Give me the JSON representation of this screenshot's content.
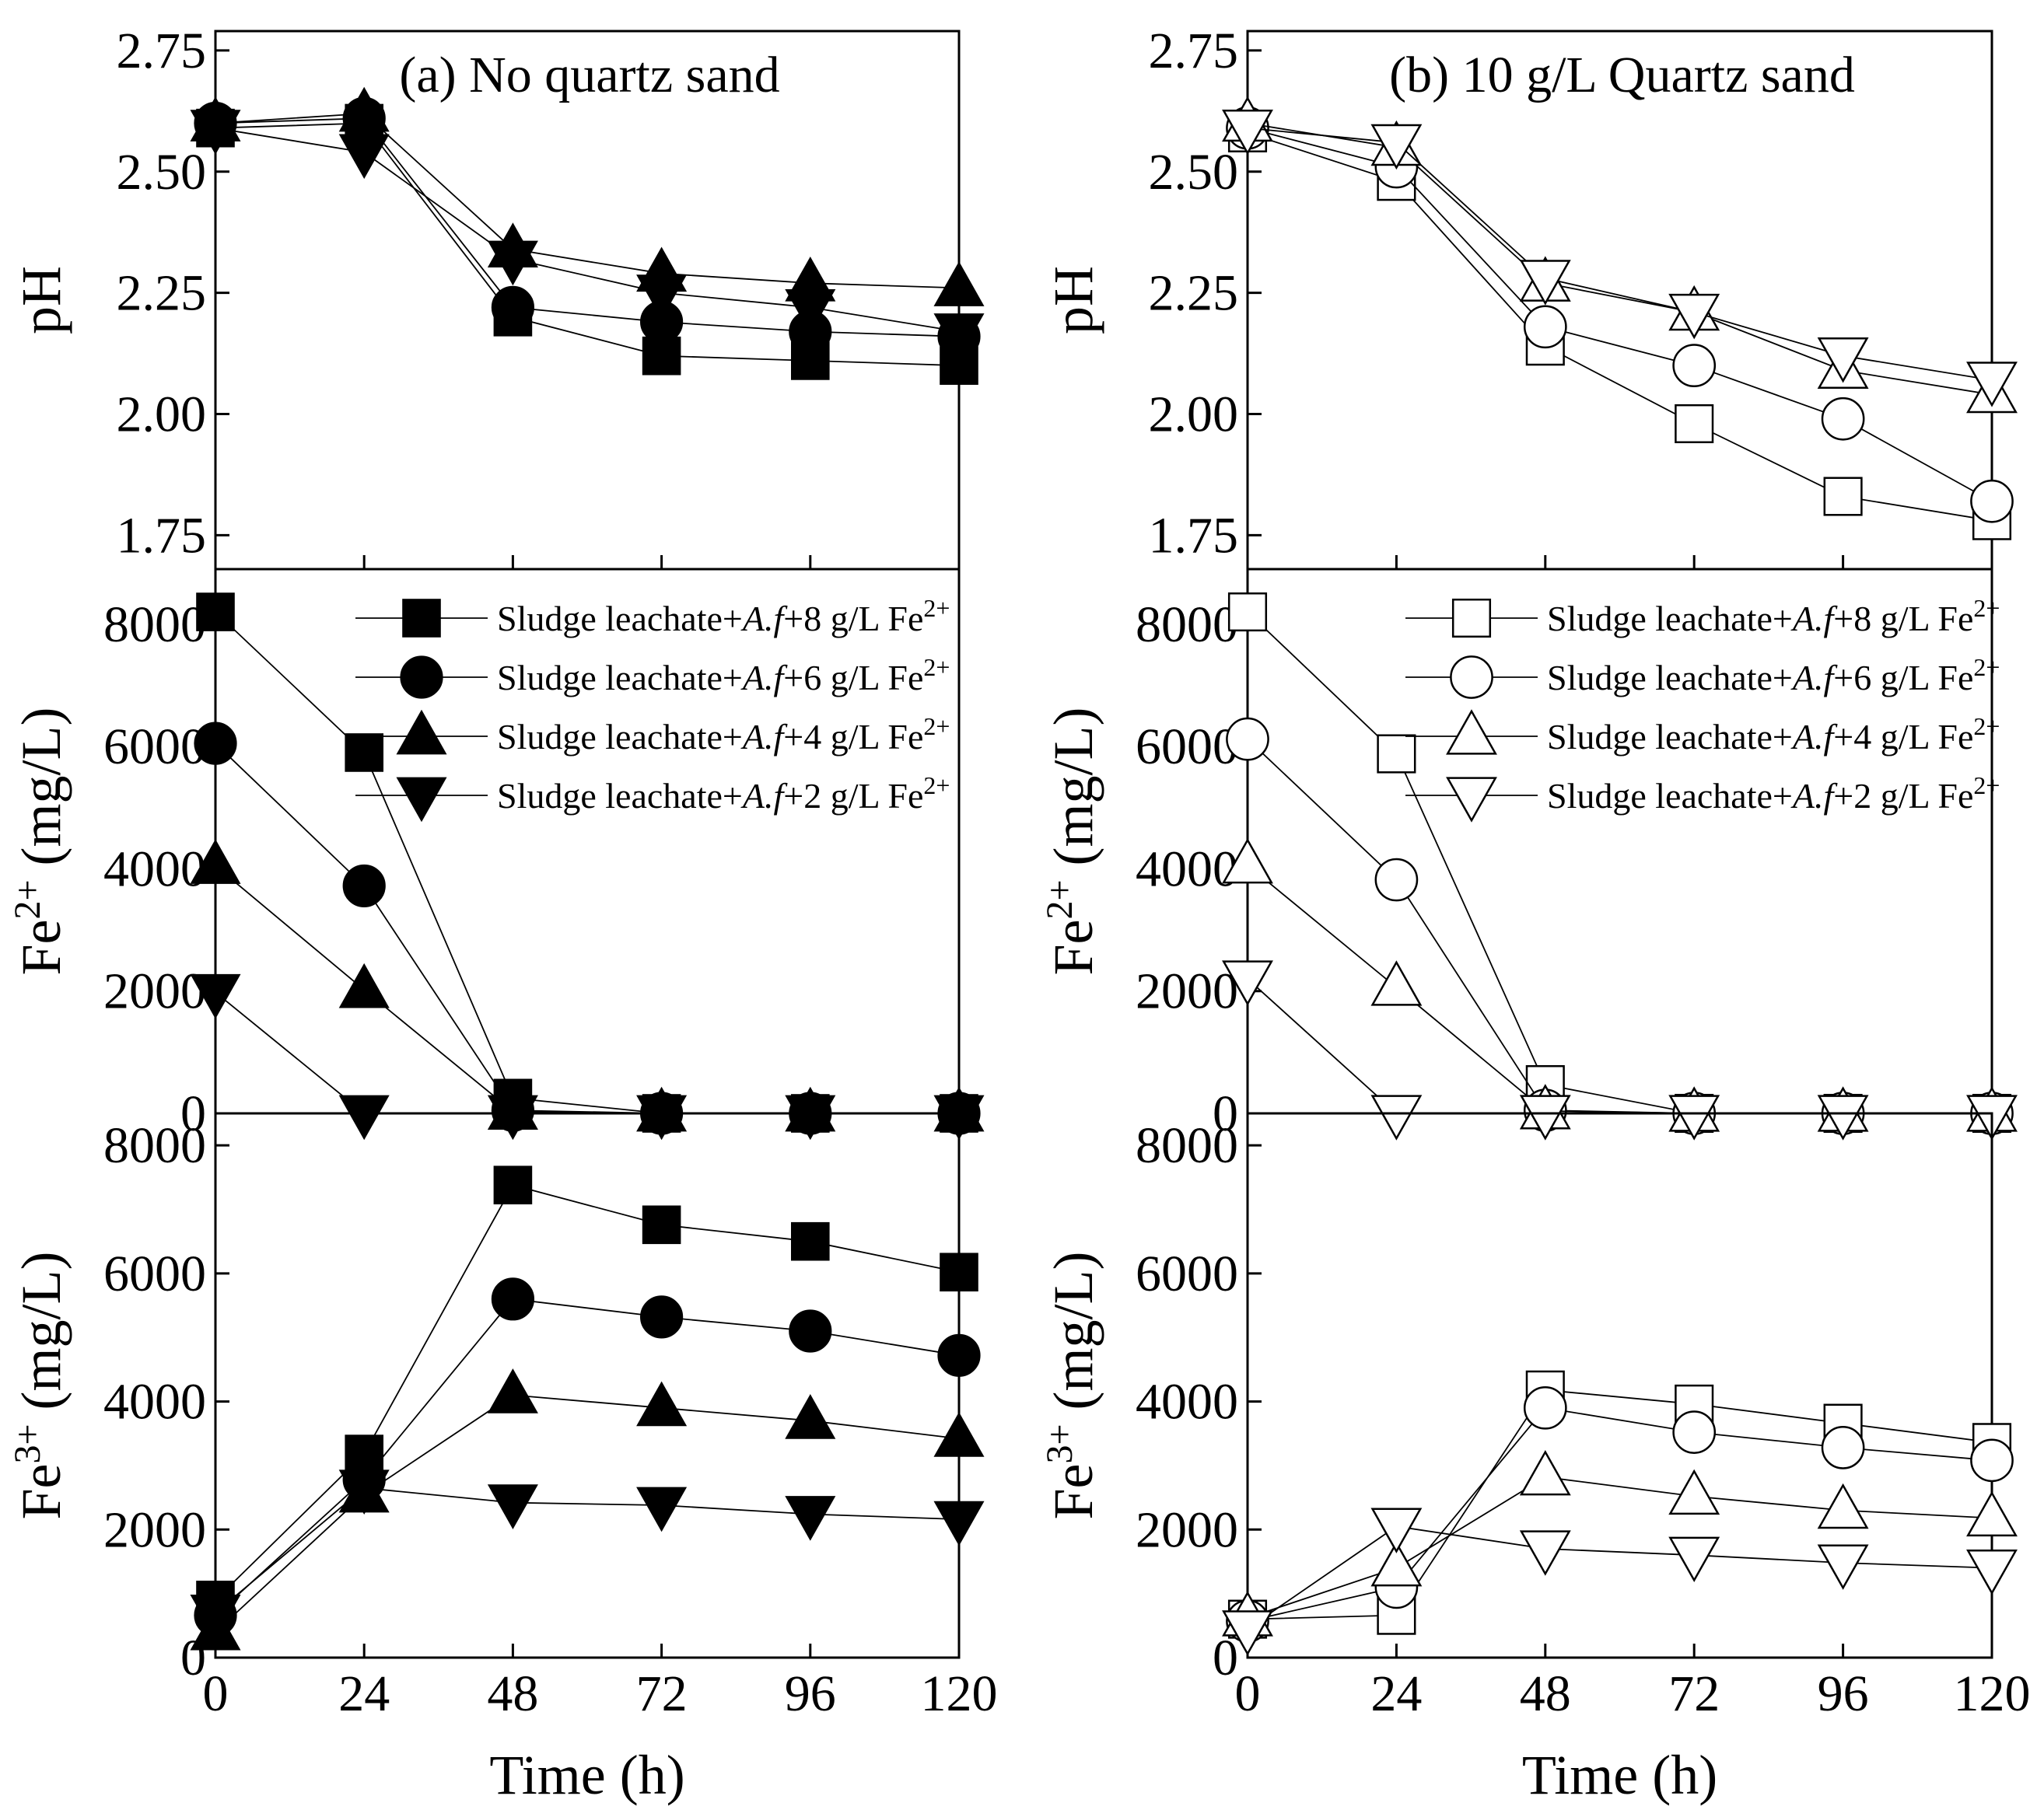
{
  "figure": {
    "xlabel": "Time (h)",
    "xticks": [
      "0",
      "24",
      "48",
      "72",
      "96",
      "120"
    ],
    "legend": {
      "prefix": "Sludge leachate+",
      "italic": "A.f",
      "entries": [
        {
          "conc": "+8 g/L Fe",
          "sup": "2+"
        },
        {
          "conc": "+6 g/L Fe",
          "sup": "2+"
        },
        {
          "conc": "+4 g/L Fe",
          "sup": "2+"
        },
        {
          "conc": "+2 g/L Fe",
          "sup": "2+"
        }
      ]
    },
    "rows": [
      {
        "key": "ph",
        "ylabel": "pH",
        "ylabel_sup": "",
        "ylabel_suffix": "",
        "yticks": [
          "1.75",
          "2.00",
          "2.25",
          "2.50",
          "2.75"
        ]
      },
      {
        "key": "fe2",
        "ylabel": "Fe",
        "ylabel_sup": "2+",
        "ylabel_suffix": " (mg/L)",
        "yticks": [
          "0",
          "2000",
          "4000",
          "6000",
          "8000"
        ]
      },
      {
        "key": "fe3",
        "ylabel": "Fe",
        "ylabel_sup": "3+",
        "ylabel_suffix": " (mg/L)",
        "yticks": [
          "0",
          "2000",
          "4000",
          "6000",
          "8000"
        ]
      }
    ]
  },
  "chart_data": [
    {
      "type": "line",
      "panel": "a",
      "title": "(a) No quartz sand",
      "marker_fill": "filled",
      "x": [
        0,
        24,
        48,
        72,
        96,
        120
      ],
      "xlim": [
        0,
        120
      ],
      "ph": {
        "ylim": [
          1.68,
          2.79
        ],
        "series": [
          {
            "name": "Sludge leachate+A.f+8 g/L Fe2+",
            "marker": "square",
            "values": [
              2.59,
              2.6,
              2.2,
              2.12,
              2.11,
              2.1
            ]
          },
          {
            "name": "Sludge leachate+A.f+6 g/L Fe2+",
            "marker": "circle",
            "values": [
              2.6,
              2.61,
              2.22,
              2.19,
              2.17,
              2.16
            ]
          },
          {
            "name": "Sludge leachate+A.f+4 g/L Fe2+",
            "marker": "triangle-up",
            "values": [
              2.6,
              2.62,
              2.34,
              2.29,
              2.27,
              2.26
            ]
          },
          {
            "name": "Sludge leachate+A.f+2 g/L Fe2+",
            "marker": "triangle-down",
            "values": [
              2.59,
              2.54,
              2.32,
              2.25,
              2.22,
              2.17
            ]
          }
        ]
      },
      "fe2": {
        "ylim": [
          0,
          8900
        ],
        "series": [
          {
            "name": "Sludge leachate+A.f+8 g/L Fe2+",
            "marker": "square",
            "values": [
              8200,
              5900,
              250,
              0,
              0,
              0
            ]
          },
          {
            "name": "Sludge leachate+A.f+6 g/L Fe2+",
            "marker": "circle",
            "values": [
              6050,
              3720,
              50,
              0,
              0,
              0
            ]
          },
          {
            "name": "Sludge leachate+A.f+4 g/L Fe2+",
            "marker": "triangle-up",
            "values": [
              4050,
              2020,
              30,
              0,
              0,
              0
            ]
          },
          {
            "name": "Sludge leachate+A.f+2 g/L Fe2+",
            "marker": "triangle-down",
            "values": [
              1980,
              0,
              0,
              0,
              0,
              0
            ]
          }
        ]
      },
      "fe3": {
        "ylim": [
          0,
          8500
        ],
        "series": [
          {
            "name": "Sludge leachate+A.f+8 g/L Fe2+",
            "marker": "square",
            "values": [
              900,
              3180,
              7380,
              6760,
              6500,
              6020
            ]
          },
          {
            "name": "Sludge leachate+A.f+6 g/L Fe2+",
            "marker": "circle",
            "values": [
              660,
              2780,
              5600,
              5320,
              5100,
              4720
            ]
          },
          {
            "name": "Sludge leachate+A.f+4 g/L Fe2+",
            "marker": "triangle-up",
            "values": [
              400,
              2550,
              4100,
              3900,
              3700,
              3420
            ]
          },
          {
            "name": "Sludge leachate+A.f+2 g/L Fe2+",
            "marker": "triangle-down",
            "values": [
              700,
              2650,
              2420,
              2380,
              2240,
              2160
            ]
          }
        ]
      }
    },
    {
      "type": "line",
      "panel": "b",
      "title": "(b) 10 g/L Quartz sand",
      "marker_fill": "open",
      "x": [
        0,
        24,
        48,
        72,
        96,
        120
      ],
      "xlim": [
        0,
        120
      ],
      "ph": {
        "ylim": [
          1.68,
          2.79
        ],
        "series": [
          {
            "name": "Sludge leachate+A.f+8 g/L Fe2+",
            "marker": "square",
            "values": [
              2.58,
              2.48,
              2.14,
              1.98,
              1.83,
              1.78
            ]
          },
          {
            "name": "Sludge leachate+A.f+6 g/L Fe2+",
            "marker": "circle",
            "values": [
              2.59,
              2.51,
              2.18,
              2.1,
              1.99,
              1.82
            ]
          },
          {
            "name": "Sludge leachate+A.f+4 g/L Fe2+",
            "marker": "triangle-up",
            "values": [
              2.6,
              2.55,
              2.27,
              2.21,
              2.09,
              2.04
            ]
          },
          {
            "name": "Sludge leachate+A.f+2 g/L Fe2+",
            "marker": "triangle-down",
            "values": [
              2.59,
              2.56,
              2.28,
              2.21,
              2.12,
              2.07
            ]
          }
        ]
      },
      "fe2": {
        "ylim": [
          0,
          8900
        ],
        "series": [
          {
            "name": "Sludge leachate+A.f+8 g/L Fe2+",
            "marker": "square",
            "values": [
              8200,
              5880,
              470,
              0,
              0,
              0
            ]
          },
          {
            "name": "Sludge leachate+A.f+6 g/L Fe2+",
            "marker": "circle",
            "values": [
              6120,
              3820,
              50,
              0,
              0,
              0
            ]
          },
          {
            "name": "Sludge leachate+A.f+4 g/L Fe2+",
            "marker": "triangle-up",
            "values": [
              4060,
              2060,
              40,
              0,
              0,
              0
            ]
          },
          {
            "name": "Sludge leachate+A.f+2 g/L Fe2+",
            "marker": "triangle-down",
            "values": [
              2200,
              0,
              0,
              0,
              0,
              0
            ]
          }
        ]
      },
      "fe3": {
        "ylim": [
          0,
          8500
        ],
        "series": [
          {
            "name": "Sludge leachate+A.f+8 g/L Fe2+",
            "marker": "square",
            "values": [
              600,
              660,
              4180,
              3960,
              3660,
              3360
            ]
          },
          {
            "name": "Sludge leachate+A.f+6 g/L Fe2+",
            "marker": "circle",
            "values": [
              570,
              1100,
              3900,
              3520,
              3280,
              3080
            ]
          },
          {
            "name": "Sludge leachate+A.f+4 g/L Fe2+",
            "marker": "triangle-up",
            "values": [
              620,
              1400,
              2820,
              2520,
              2300,
              2180
            ]
          },
          {
            "name": "Sludge leachate+A.f+2 g/L Fe2+",
            "marker": "triangle-down",
            "values": [
              450,
              2050,
              1700,
              1600,
              1480,
              1400
            ]
          }
        ]
      }
    }
  ]
}
